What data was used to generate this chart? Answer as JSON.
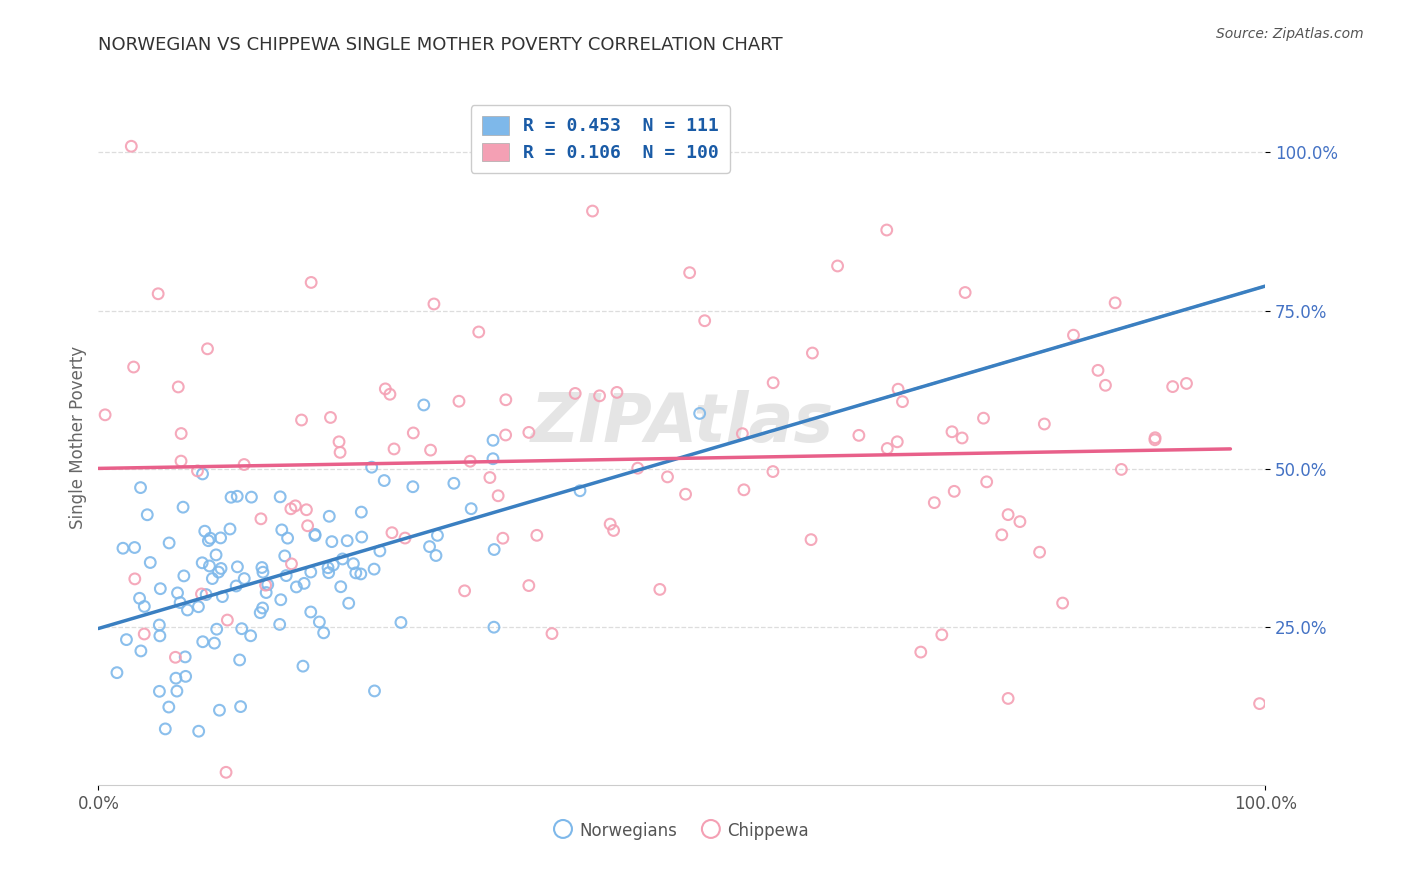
{
  "title": "NORWEGIAN VS CHIPPEWA SINGLE MOTHER POVERTY CORRELATION CHART",
  "source": "Source: ZipAtlas.com",
  "ylabel": "Single Mother Poverty",
  "legend_labels": [
    "Norwegians",
    "Chippewa"
  ],
  "legend_R": [
    0.453,
    0.106
  ],
  "legend_N": [
    111,
    100
  ],
  "norwegian_color": "#7EB8EA",
  "chippewa_color": "#F4A0B4",
  "norwegian_line_color": "#3A7FC1",
  "chippewa_line_color": "#E8608A",
  "trend_ext_color": "#BBBBBB",
  "background_color": "#FFFFFF",
  "grid_color": "#DDDDDD",
  "yticks": [
    0.25,
    0.5,
    0.75,
    1.0
  ],
  "ytick_labels": [
    "25.0%",
    "50.0%",
    "75.0%",
    "100.0%"
  ],
  "xlim": [
    0.0,
    1.0
  ],
  "ylim": [
    0.0,
    1.1
  ],
  "title_color": "#333333",
  "title_fontsize": 13,
  "tick_color": "#4472C4",
  "watermark_color": "#CCCCCC",
  "watermark_alpha": 0.5
}
